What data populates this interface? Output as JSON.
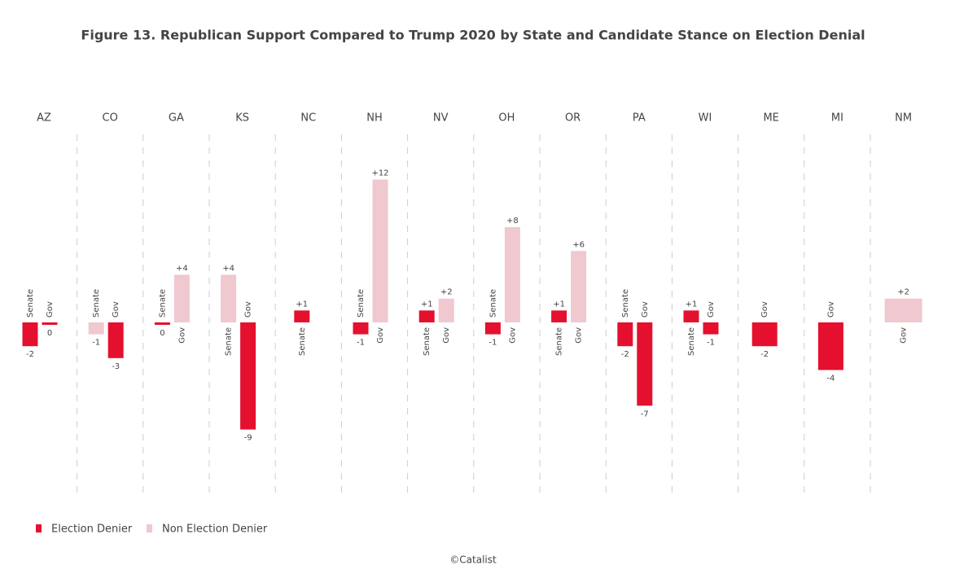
{
  "chart_data": {
    "type": "bar",
    "title": "Figure 13. Republican Support Compared to Trump 2020 by State and Candidate Stance on Election Denial",
    "series": [
      {
        "name": "Election Denier",
        "color": "#e4102e"
      },
      {
        "name": "Non Election Denier",
        "color": "#f0c8cf"
      }
    ],
    "ylim": [
      -14.3,
      15.8
    ],
    "groups": [
      {
        "name": "AZ",
        "bars": [
          {
            "label": "Senate",
            "value": -2,
            "value_label": "-2",
            "series": 0
          },
          {
            "label": "Gov",
            "value": 0,
            "value_label": "0",
            "series": 0
          }
        ]
      },
      {
        "name": "CO",
        "bars": [
          {
            "label": "Senate",
            "value": -1,
            "value_label": "-1",
            "series": 1
          },
          {
            "label": "Gov",
            "value": -3,
            "value_label": "-3",
            "series": 0
          }
        ]
      },
      {
        "name": "GA",
        "bars": [
          {
            "label": "Senate",
            "value": 0,
            "value_label": "0",
            "series": 0
          },
          {
            "label": "Gov",
            "value": 4,
            "value_label": "+4",
            "series": 1
          }
        ]
      },
      {
        "name": "KS",
        "bars": [
          {
            "label": "Senate",
            "value": 4,
            "value_label": "+4",
            "series": 1
          },
          {
            "label": "Gov",
            "value": -9,
            "value_label": "-9",
            "series": 0
          }
        ]
      },
      {
        "name": "NC",
        "bars": [
          {
            "label": "Senate",
            "value": 1,
            "value_label": "+1",
            "series": 0
          }
        ]
      },
      {
        "name": "NH",
        "bars": [
          {
            "label": "Senate",
            "value": -1,
            "value_label": "-1",
            "series": 0
          },
          {
            "label": "Gov",
            "value": 12,
            "value_label": "+12",
            "series": 1
          }
        ]
      },
      {
        "name": "NV",
        "bars": [
          {
            "label": "Senate",
            "value": 1,
            "value_label": "+1",
            "series": 0
          },
          {
            "label": "Gov",
            "value": 2,
            "value_label": "+2",
            "series": 1
          }
        ]
      },
      {
        "name": "OH",
        "bars": [
          {
            "label": "Senate",
            "value": -1,
            "value_label": "-1",
            "series": 0
          },
          {
            "label": "Gov",
            "value": 8,
            "value_label": "+8",
            "series": 1
          }
        ]
      },
      {
        "name": "OR",
        "bars": [
          {
            "label": "Senate",
            "value": 1,
            "value_label": "+1",
            "series": 0
          },
          {
            "label": "Gov",
            "value": 6,
            "value_label": "+6",
            "series": 1
          }
        ]
      },
      {
        "name": "PA",
        "bars": [
          {
            "label": "Senate",
            "value": -2,
            "value_label": "-2",
            "series": 0
          },
          {
            "label": "Gov",
            "value": -7,
            "value_label": "-7",
            "series": 0
          }
        ]
      },
      {
        "name": "WI",
        "bars": [
          {
            "label": "Senate",
            "value": 1,
            "value_label": "+1",
            "series": 0
          },
          {
            "label": "Gov",
            "value": -1,
            "value_label": "-1",
            "series": 0
          }
        ]
      },
      {
        "name": "ME",
        "bars": [
          {
            "label": "Gov",
            "value": -2,
            "value_label": "-2",
            "series": 0
          }
        ]
      },
      {
        "name": "MI",
        "bars": [
          {
            "label": "Gov",
            "value": -4,
            "value_label": "-4",
            "series": 0
          }
        ]
      },
      {
        "name": "NM",
        "bars": [
          {
            "label": "Gov",
            "value": 2,
            "value_label": "+2",
            "series": 1
          }
        ]
      }
    ],
    "footer": "©Catalist"
  }
}
